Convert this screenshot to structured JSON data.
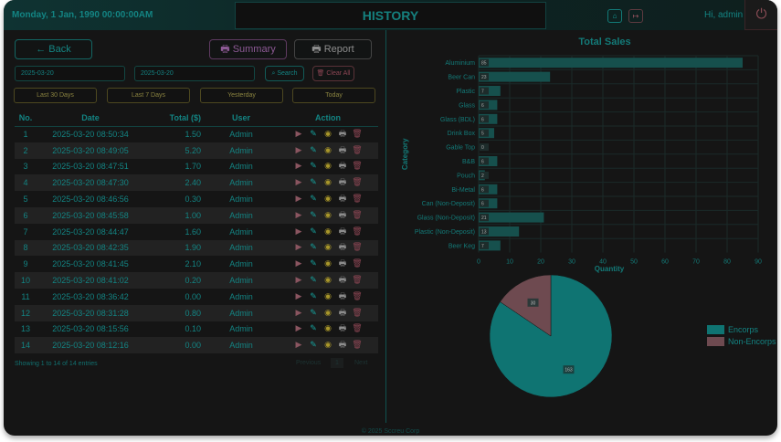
{
  "header": {
    "datetime": "Monday, 1 Jan, 1990 00:00:00AM",
    "title": "HISTORY",
    "greeting": "Hi, admin",
    "home_icon": "home-icon",
    "logout_icon": "logout-icon",
    "power_icon": "power-icon"
  },
  "toolbar": {
    "back": "← Back",
    "summary": "Summary",
    "report": "Report",
    "date_from": "2025-03-20",
    "date_to": "2025-03-20",
    "search": "Search",
    "clear_all": "Clear All"
  },
  "quick": [
    "Last 30 Days",
    "Last 7 Days",
    "Yesterday",
    "Today"
  ],
  "table": {
    "headers": [
      "No.",
      "Date",
      "Total ($)",
      "User",
      "Action"
    ],
    "rows": [
      [
        "1",
        "2025-03-20 08:50:34",
        "1.50",
        "Admin"
      ],
      [
        "2",
        "2025-03-20 08:49:05",
        "5.20",
        "Admin"
      ],
      [
        "3",
        "2025-03-20 08:47:51",
        "1.70",
        "Admin"
      ],
      [
        "4",
        "2025-03-20 08:47:30",
        "2.40",
        "Admin"
      ],
      [
        "5",
        "2025-03-20 08:46:56",
        "0.30",
        "Admin"
      ],
      [
        "6",
        "2025-03-20 08:45:58",
        "1.00",
        "Admin"
      ],
      [
        "7",
        "2025-03-20 08:44:47",
        "1.60",
        "Admin"
      ],
      [
        "8",
        "2025-03-20 08:42:35",
        "1.90",
        "Admin"
      ],
      [
        "9",
        "2025-03-20 08:41:45",
        "2.10",
        "Admin"
      ],
      [
        "10",
        "2025-03-20 08:41:02",
        "0.20",
        "Admin"
      ],
      [
        "11",
        "2025-03-20 08:36:42",
        "0.00",
        "Admin"
      ],
      [
        "12",
        "2025-03-20 08:31:28",
        "0.80",
        "Admin"
      ],
      [
        "13",
        "2025-03-20 08:15:56",
        "0.10",
        "Admin"
      ],
      [
        "14",
        "2025-03-20 08:12:16",
        "0.00",
        "Admin"
      ]
    ]
  },
  "pagination": {
    "info": "Showing 1 to 14 of 14 entries",
    "previous": "Previous",
    "page": "1",
    "next": "Next"
  },
  "footer": "© 2025 Sccreu Corp",
  "chart_data": [
    {
      "type": "bar",
      "title": "Total Sales",
      "xlabel": "Quantity",
      "ylabel": "Category",
      "orientation": "horizontal",
      "xlim": [
        0,
        90
      ],
      "xticks": [
        0,
        10,
        20,
        30,
        40,
        50,
        60,
        70,
        80,
        90
      ],
      "categories": [
        "Aluminium",
        "Beer Can",
        "Plastic",
        "Glass",
        "Glass (BDL)",
        "Drink Box",
        "Gable Top",
        "B&B",
        "Pouch",
        "Bi-Metal",
        "Can (Non-Deposit)",
        "Glass (Non-Deposit)",
        "Plastic (Non-Deposit)",
        "Beer Keg"
      ],
      "values": [
        85,
        23,
        7,
        6,
        6,
        5,
        0,
        6,
        2,
        6,
        6,
        21,
        13,
        7
      ],
      "color": "#16504d"
    },
    {
      "type": "pie",
      "labels": [
        "Encorps",
        "Non-Encorps"
      ],
      "values": [
        163,
        30
      ],
      "colors": [
        "#0f7472",
        "#6e4a50"
      ],
      "legend": "right"
    }
  ]
}
